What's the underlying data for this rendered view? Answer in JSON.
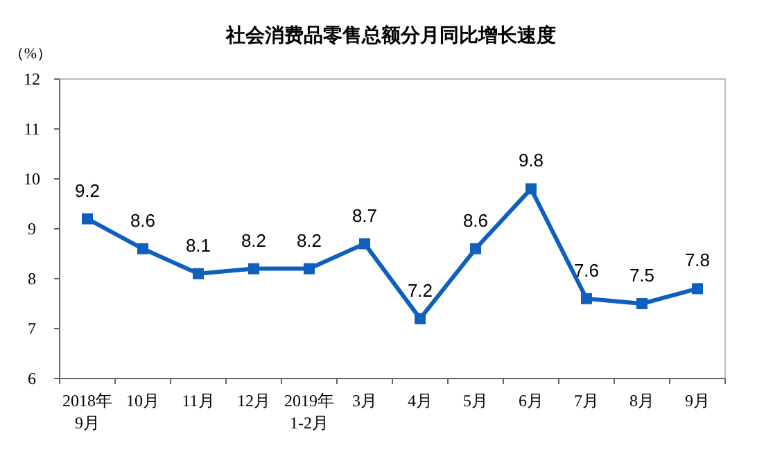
{
  "chart_data": {
    "type": "line",
    "title": "社会消费品零售总额分月同比增长速度",
    "ylabel": "（%）",
    "categories": [
      "2018年\n9月",
      "10月",
      "11月",
      "12月",
      "2019年\n1-2月",
      "3月",
      "4月",
      "5月",
      "6月",
      "7月",
      "8月",
      "9月"
    ],
    "series": [
      {
        "color": "#0f5fbf",
        "values": [
          9.2,
          8.6,
          8.1,
          8.2,
          8.2,
          8.7,
          7.2,
          8.6,
          9.8,
          7.6,
          7.5,
          7.8
        ]
      }
    ],
    "ylim": [
      6,
      12
    ],
    "yticks": [
      6,
      7,
      8,
      9,
      10,
      11,
      12
    ],
    "grid": false,
    "marker": "square",
    "line_style": "solid",
    "data_labels": true
  }
}
